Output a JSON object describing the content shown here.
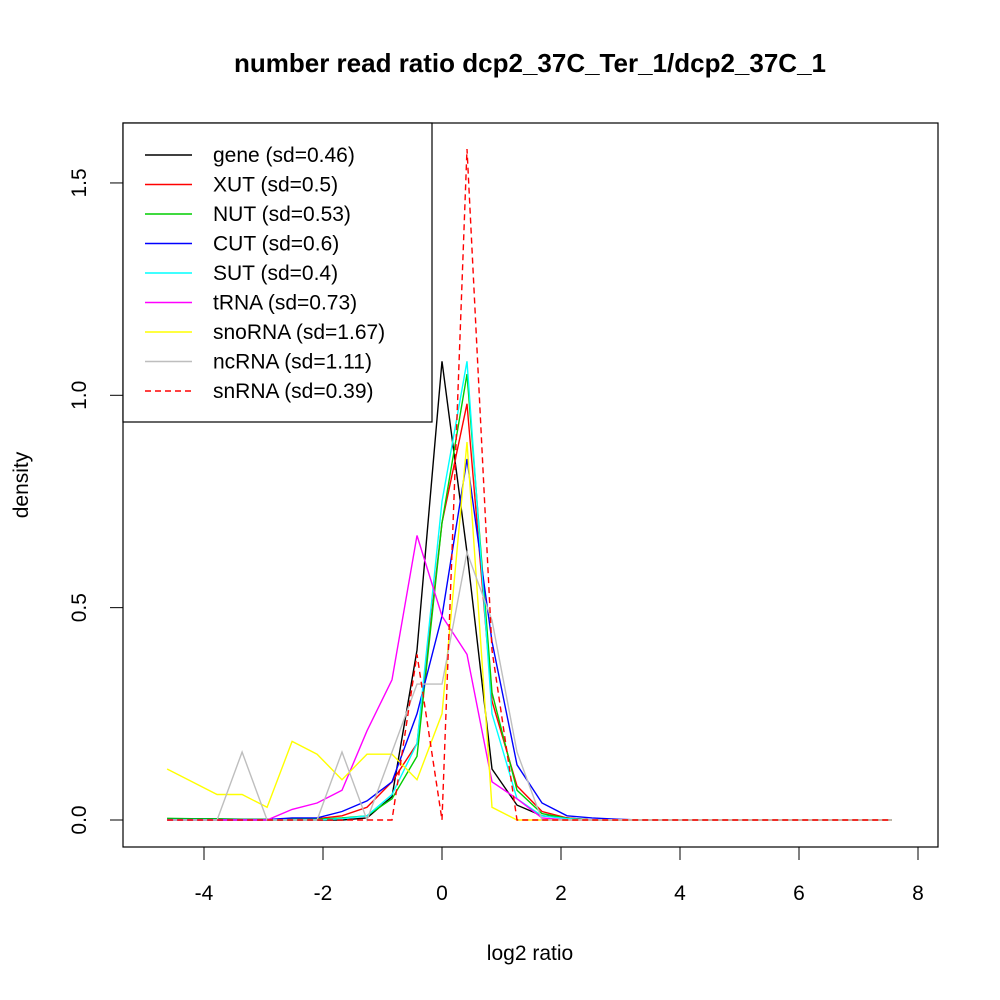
{
  "chart_data": {
    "type": "line",
    "title": "number read ratio dcp2_37C_Ter_1/dcp2_37C_1",
    "xlabel": "log2 ratio",
    "ylabel": "density",
    "xlim": [
      -4.9,
      8.3
    ],
    "ylim": [
      -0.065,
      1.64
    ],
    "x_ticks": [
      "-4",
      "-2",
      "0",
      "2",
      "4",
      "6",
      "8"
    ],
    "x_tick_values": [
      -4,
      -2,
      0,
      2,
      4,
      6,
      8
    ],
    "y_ticks": [
      "0.0",
      "0.5",
      "1.0",
      "1.5"
    ],
    "y_tick_values": [
      0,
      0.5,
      1.0,
      1.5
    ],
    "x_step": 0.42,
    "x_start_index": -11,
    "legend_position": "top-left",
    "series": [
      {
        "name": "gene (sd=0.46)",
        "color": "#000000",
        "dash": false,
        "values": [
          0,
          0,
          0,
          0,
          0,
          0,
          0,
          0,
          0.005,
          0.055,
          0.4,
          1.08,
          0.63,
          0.12,
          0.035,
          0.01,
          0.005,
          0,
          0,
          0,
          0,
          0,
          0,
          0,
          0,
          0,
          0,
          0,
          0,
          0
        ]
      },
      {
        "name": "XUT (sd=0.5)",
        "color": "#ff0000",
        "dash": false,
        "values": [
          0.002,
          0.002,
          0.002,
          0.002,
          0.002,
          0.002,
          0.003,
          0.01,
          0.03,
          0.09,
          0.18,
          0.7,
          0.98,
          0.28,
          0.08,
          0.02,
          0.005,
          0,
          0,
          0,
          0,
          0,
          0,
          0,
          0,
          0,
          0,
          0,
          0,
          0
        ]
      },
      {
        "name": "NUT (sd=0.53)",
        "color": "#00cd00",
        "dash": false,
        "values": [
          0.004,
          0.003,
          0.003,
          0.002,
          0.002,
          0.002,
          0.002,
          0.005,
          0.01,
          0.05,
          0.15,
          0.7,
          1.05,
          0.3,
          0.07,
          0.015,
          0.004,
          0,
          0,
          0,
          0,
          0,
          0,
          0,
          0,
          0,
          0,
          0,
          0,
          0
        ]
      },
      {
        "name": "CUT (sd=0.6)",
        "color": "#0000ff",
        "dash": false,
        "values": [
          0.001,
          0.001,
          0.001,
          0.001,
          0.001,
          0.005,
          0.005,
          0.02,
          0.045,
          0.09,
          0.25,
          0.48,
          0.85,
          0.42,
          0.13,
          0.04,
          0.01,
          0.005,
          0.002,
          0,
          0,
          0,
          0,
          0,
          0,
          0,
          0,
          0,
          0,
          0
        ]
      },
      {
        "name": "SUT (sd=0.4)",
        "color": "#00ffff",
        "dash": false,
        "values": [
          0,
          0,
          0,
          0,
          0,
          0,
          0,
          0.003,
          0.01,
          0.06,
          0.18,
          0.75,
          1.08,
          0.25,
          0.05,
          0.01,
          0.003,
          0,
          0,
          0,
          0,
          0,
          0,
          0,
          0,
          0,
          0,
          0,
          0,
          0
        ]
      },
      {
        "name": "tRNA (sd=0.73)",
        "color": "#ff00ff",
        "dash": false,
        "values": [
          0,
          0,
          0,
          0,
          0,
          0.025,
          0.04,
          0.07,
          0.21,
          0.33,
          0.67,
          0.48,
          0.39,
          0.09,
          0.05,
          0.005,
          0,
          0,
          0,
          0,
          0,
          0,
          0,
          0,
          0,
          0,
          0,
          0,
          0,
          0
        ]
      },
      {
        "name": "snoRNA (sd=1.67)",
        "color": "#ffff00",
        "dash": false,
        "values": [
          0.12,
          0.09,
          0.06,
          0.06,
          0.03,
          0.185,
          0.155,
          0.095,
          0.155,
          0.155,
          0.095,
          0.25,
          0.89,
          0.03,
          0,
          0,
          0,
          0,
          0,
          0,
          0,
          0,
          0,
          0,
          0,
          0,
          0,
          0,
          0,
          0
        ]
      },
      {
        "name": "ncRNA (sd=1.11)",
        "color": "#bebebe",
        "dash": false,
        "values": [
          0,
          0,
          0,
          0.16,
          0,
          0,
          0,
          0.16,
          0,
          0.16,
          0.32,
          0.32,
          0.63,
          0.47,
          0.16,
          0,
          0,
          0,
          0,
          0,
          0,
          0,
          0,
          0,
          0,
          0,
          0,
          0,
          0,
          0
        ]
      },
      {
        "name": "snRNA (sd=0.39)",
        "color": "#ff0000",
        "dash": true,
        "values": [
          0,
          0,
          0,
          0,
          0,
          0,
          0,
          0,
          0,
          0,
          0.39,
          0,
          1.58,
          0.4,
          0,
          0,
          0,
          0,
          0,
          0,
          0,
          0,
          0,
          0,
          0,
          0,
          0,
          0,
          0,
          0
        ]
      }
    ]
  }
}
